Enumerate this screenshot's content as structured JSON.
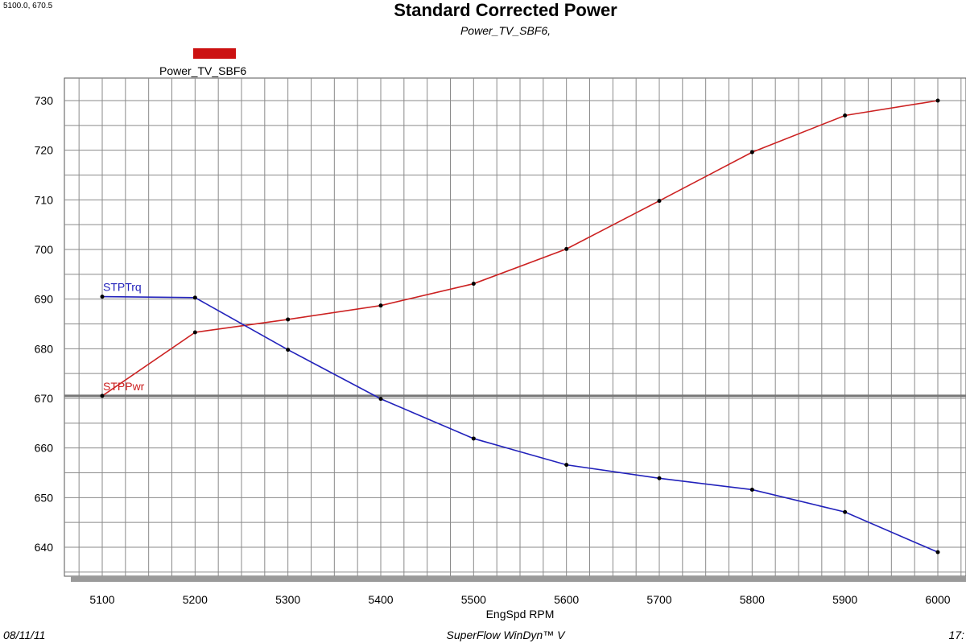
{
  "header": {
    "coord_readout": "5100.0, 670.5",
    "title": "Standard Corrected Power",
    "subtitle": "Power_TV_SBF6,"
  },
  "legend": {
    "label": "Power_TV_SBF6",
    "color": "#cc1111"
  },
  "footer": {
    "date": "08/11/11",
    "product": "SuperFlow WinDyn™ V",
    "time": "17:"
  },
  "chart_data": {
    "type": "line",
    "title": "Standard Corrected Power",
    "subtitle": "Power_TV_SBF6,",
    "xlabel": "EngSpd  RPM",
    "ylabel": "",
    "xlim": [
      5100,
      6000
    ],
    "ylim": [
      640,
      730
    ],
    "x_ticks": [
      5100,
      5200,
      5300,
      5400,
      5500,
      5600,
      5700,
      5800,
      5900,
      6000
    ],
    "y_ticks": [
      640,
      650,
      660,
      670,
      680,
      690,
      700,
      710,
      720,
      730
    ],
    "grid": true,
    "legend_position": "top-left",
    "x": [
      5100,
      5200,
      5300,
      5400,
      5500,
      5600,
      5700,
      5800,
      5900,
      6000
    ],
    "series": [
      {
        "name": "STPPwr",
        "color": "#cc2222",
        "values": [
          670.5,
          683.3,
          685.9,
          688.7,
          693.1,
          700.1,
          709.8,
          719.6,
          727.0,
          730.0
        ]
      },
      {
        "name": "STPTrq",
        "color": "#2222bb",
        "values": [
          690.5,
          690.3,
          679.8,
          669.9,
          661.9,
          656.6,
          653.9,
          651.6,
          647.1,
          639.0
        ]
      }
    ]
  }
}
